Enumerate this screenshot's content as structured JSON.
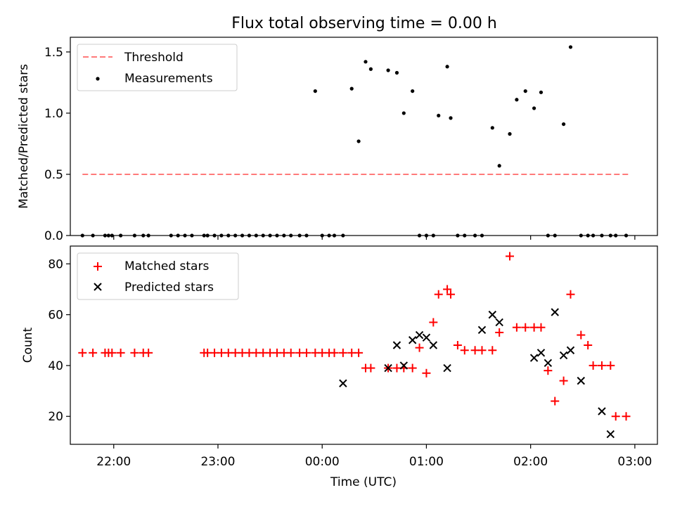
{
  "figure": {
    "title": "Flux total observing time = 0.00 h"
  },
  "chart_data": [
    {
      "type": "scatter",
      "title": "Flux total observing time = 0.00 h",
      "ylabel": "Matched/Predicted stars",
      "xlabel": "",
      "xlim": [
        "21:35",
        "03:13"
      ],
      "ylim": [
        0,
        1.62
      ],
      "yticks": [
        "0.0",
        "0.5",
        "1.0",
        "1.5"
      ],
      "grid": false,
      "legend": {
        "position": "upper-left",
        "entries": [
          "Threshold",
          "Measurements"
        ]
      },
      "threshold": {
        "name": "Threshold",
        "y": 0.5,
        "x_start": "21:42",
        "x_end": "02:57",
        "color": "#ff7a7a"
      },
      "series": [
        {
          "name": "Measurements",
          "color": "#000000",
          "x": [
            "21:42",
            "21:48",
            "21:55",
            "21:57",
            "21:59",
            "22:04",
            "22:12",
            "22:17",
            "22:20",
            "22:33",
            "22:37",
            "22:41",
            "22:45",
            "22:52",
            "22:54",
            "22:58",
            "23:02",
            "23:06",
            "23:10",
            "23:14",
            "23:18",
            "23:22",
            "23:26",
            "23:30",
            "23:34",
            "23:38",
            "23:42",
            "23:47",
            "23:51",
            "23:56",
            "00:00",
            "00:04",
            "00:07",
            "00:12",
            "00:17",
            "00:21",
            "00:25",
            "00:28",
            "00:38",
            "00:43",
            "00:47",
            "00:52",
            "00:56",
            "01:00",
            "01:04",
            "01:07",
            "01:12",
            "01:14",
            "01:18",
            "01:22",
            "01:28",
            "01:32",
            "01:38",
            "01:42",
            "01:48",
            "01:52",
            "01:57",
            "02:02",
            "02:06",
            "02:10",
            "02:14",
            "02:19",
            "02:23",
            "02:29",
            "02:33",
            "02:36",
            "02:41",
            "02:46",
            "02:49",
            "02:55"
          ],
          "y": [
            0,
            0,
            0,
            0,
            0,
            0,
            0,
            0,
            0,
            0,
            0,
            0,
            0,
            0,
            0,
            0,
            0,
            0,
            0,
            0,
            0,
            0,
            0,
            0,
            0,
            0,
            0,
            0,
            0,
            1.18,
            0,
            0,
            0,
            0,
            1.2,
            0.77,
            1.42,
            1.36,
            1.35,
            1.33,
            1.0,
            1.18,
            0,
            0,
            0,
            0.98,
            1.38,
            0.96,
            0,
            0,
            0,
            0,
            0.88,
            0.57,
            0.83,
            1.11,
            1.18,
            1.04,
            1.17,
            0,
            0,
            0.91,
            1.54,
            0,
            0,
            0,
            0,
            0,
            0,
            0
          ]
        }
      ]
    },
    {
      "type": "scatter",
      "title": "",
      "ylabel": "Count",
      "xlabel": "Time (UTC)",
      "xlim": [
        "21:35",
        "03:13"
      ],
      "ylim": [
        9,
        87
      ],
      "yticks": [
        "20",
        "40",
        "60",
        "80"
      ],
      "xticks": [
        "22:00",
        "23:00",
        "00:00",
        "01:00",
        "02:00",
        "03:00"
      ],
      "grid": false,
      "legend": {
        "position": "upper-left",
        "entries": [
          "Matched stars",
          "Predicted stars"
        ]
      },
      "series": [
        {
          "name": "Matched stars",
          "marker": "+",
          "color": "#ff0000",
          "x": [
            "21:42",
            "21:48",
            "21:55",
            "21:57",
            "21:59",
            "22:04",
            "22:12",
            "22:17",
            "22:20",
            "22:52",
            "22:54",
            "22:58",
            "23:02",
            "23:06",
            "23:10",
            "23:14",
            "23:18",
            "23:22",
            "23:26",
            "23:30",
            "23:34",
            "23:38",
            "23:42",
            "23:47",
            "23:51",
            "23:56",
            "00:00",
            "00:04",
            "00:07",
            "00:12",
            "00:17",
            "00:21",
            "00:25",
            "00:28",
            "00:38",
            "00:43",
            "00:47",
            "00:52",
            "00:56",
            "01:00",
            "01:04",
            "01:07",
            "01:12",
            "01:14",
            "01:18",
            "01:22",
            "01:28",
            "01:32",
            "01:38",
            "01:42",
            "01:48",
            "01:52",
            "01:57",
            "02:02",
            "02:06",
            "02:10",
            "02:14",
            "02:19",
            "02:23",
            "02:29",
            "02:33",
            "02:36",
            "02:41",
            "02:46",
            "02:49",
            "02:55"
          ],
          "y": [
            45,
            45,
            45,
            45,
            45,
            45,
            45,
            45,
            45,
            45,
            45,
            45,
            45,
            45,
            45,
            45,
            45,
            45,
            45,
            45,
            45,
            45,
            45,
            45,
            45,
            45,
            45,
            45,
            45,
            45,
            45,
            45,
            39,
            39,
            39,
            39,
            39,
            39,
            47,
            37,
            57,
            68,
            70,
            68,
            48,
            46,
            46,
            46,
            46,
            53,
            83,
            55,
            55,
            55,
            55,
            38,
            26,
            34,
            68,
            52,
            48,
            40,
            40,
            40,
            20,
            20
          ]
        },
        {
          "name": "Predicted stars",
          "marker": "x",
          "color": "#000000",
          "x": [
            "00:12",
            "00:38",
            "00:43",
            "00:47",
            "00:52",
            "00:56",
            "01:00",
            "01:04",
            "01:12",
            "01:32",
            "01:38",
            "01:42",
            "02:02",
            "02:06",
            "02:10",
            "02:14",
            "02:19",
            "02:23",
            "02:29",
            "02:41",
            "02:46"
          ],
          "y": [
            33,
            39,
            48,
            40,
            50,
            52,
            51,
            48,
            39,
            54,
            60,
            57,
            43,
            45,
            41,
            61,
            44,
            46,
            34,
            22,
            13
          ]
        }
      ]
    }
  ]
}
